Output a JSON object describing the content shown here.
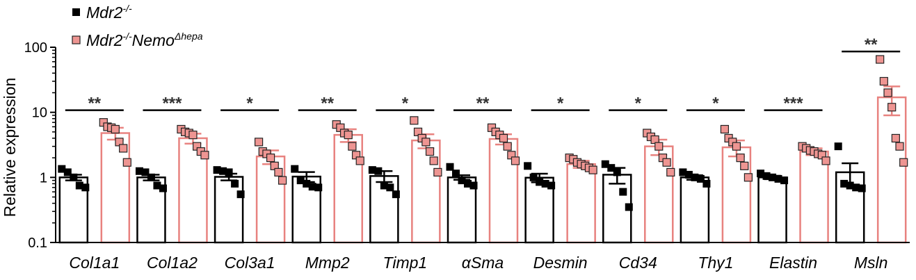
{
  "chart_data": {
    "type": "bar",
    "ylabel": "Relative expression",
    "yscale": "log",
    "ylim": [
      0.1,
      100
    ],
    "yticks": [
      {
        "value": 0.1,
        "label": "0.1"
      },
      {
        "value": 1,
        "label": "1"
      },
      {
        "value": 10,
        "label": "10"
      },
      {
        "value": 100,
        "label": "100"
      }
    ],
    "categories": [
      "Col1a1",
      "Col1a2",
      "Col3a1",
      "Mmp2",
      "Timp1",
      "αSma",
      "Desmin",
      "Cd34",
      "Thy1",
      "Elastin",
      "Msln"
    ],
    "legend_placement": "top-left",
    "series": [
      {
        "name_main": "Mdr2",
        "name_sup": "-/-",
        "name_suffix": "",
        "name_suffix_sup": "",
        "color": "#000000",
        "fill": "#ffffff",
        "values": [
          1.0,
          1.0,
          1.02,
          1.03,
          1.05,
          1.0,
          0.99,
          1.1,
          1.0,
          1.0,
          1.2
        ],
        "errors": [
          0.1,
          0.1,
          0.12,
          0.18,
          0.2,
          0.08,
          0.15,
          0.3,
          0.08,
          0.06,
          0.45
        ],
        "points": [
          [
            1.35,
            1.2,
            1.0,
            0.75,
            0.7
          ],
          [
            1.25,
            1.2,
            1.0,
            0.75,
            0.68
          ],
          [
            1.3,
            1.25,
            1.2,
            0.8,
            0.55
          ],
          [
            1.35,
            0.9,
            0.8,
            0.72,
            0.7
          ],
          [
            1.3,
            1.25,
            0.75,
            0.7,
            0.55
          ],
          [
            1.45,
            1.15,
            0.9,
            0.8,
            0.75
          ],
          [
            1.5,
            1.0,
            0.85,
            0.8,
            0.75
          ],
          [
            1.6,
            1.4,
            1.2,
            0.6,
            0.35
          ],
          [
            1.2,
            1.1,
            1.0,
            0.95,
            0.8
          ],
          [
            1.15,
            1.05,
            1.0,
            0.95,
            0.9
          ],
          [
            3.0,
            0.8,
            0.75,
            0.7,
            0.68
          ]
        ]
      },
      {
        "name_main": "Mdr2",
        "name_sup": "-/-",
        "name_suffix": "Nemo",
        "name_suffix_sup": "Δhepa",
        "color": "#e8827f",
        "fill": "#ffffff",
        "values": [
          4.8,
          4.0,
          2.1,
          4.5,
          3.7,
          3.9,
          1.6,
          3.0,
          2.9,
          2.5,
          17.0
        ],
        "errors": [
          1.0,
          0.7,
          0.5,
          1.0,
          0.9,
          0.7,
          0.2,
          0.8,
          0.8,
          0.3,
          8.0
        ],
        "points": [
          [
            7.0,
            6.0,
            5.8,
            5.5,
            3.5,
            2.8,
            1.7
          ],
          [
            5.5,
            5.0,
            4.8,
            4.5,
            3.0,
            2.5,
            2.2
          ],
          [
            3.5,
            2.5,
            2.3,
            2.0,
            1.5,
            1.2,
            0.9
          ],
          [
            6.5,
            5.8,
            4.8,
            4.5,
            3.0,
            2.2,
            1.8
          ],
          [
            7.5,
            5.0,
            4.0,
            3.5,
            2.5,
            1.8,
            1.2
          ],
          [
            5.8,
            5.0,
            4.5,
            4.0,
            3.0,
            2.2,
            1.8
          ],
          [
            2.0,
            1.9,
            1.7,
            1.6,
            1.5,
            1.4,
            1.3
          ],
          [
            4.8,
            4.2,
            3.8,
            3.0,
            2.0,
            1.7,
            1.2
          ],
          [
            5.5,
            4.0,
            3.5,
            3.0,
            2.0,
            1.5,
            1.0
          ],
          [
            3.0,
            2.8,
            2.6,
            2.5,
            2.3,
            2.2,
            1.8
          ],
          [
            65,
            30,
            20,
            12,
            4.0,
            3.0,
            1.7
          ]
        ]
      }
    ],
    "significance": [
      {
        "label": "**",
        "y": 10
      },
      {
        "label": "***",
        "y": 10
      },
      {
        "label": "*",
        "y": 10
      },
      {
        "label": "**",
        "y": 10
      },
      {
        "label": "*",
        "y": 10
      },
      {
        "label": "**",
        "y": 10
      },
      {
        "label": "*",
        "y": 10
      },
      {
        "label": "*",
        "y": 10
      },
      {
        "label": "*",
        "y": 10
      },
      {
        "label": "***",
        "y": 10
      },
      {
        "label": "**",
        "y": 80
      }
    ]
  }
}
